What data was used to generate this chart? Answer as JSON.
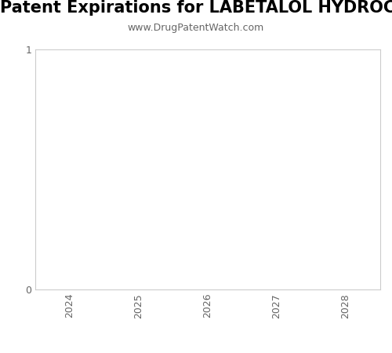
{
  "title": "Patent Expirations for LABETALOL HYDROCHLORIDE IN DEXTROS",
  "subtitle": "www.DrugPatentWatch.com",
  "xlim": [
    2023.5,
    2028.5
  ],
  "ylim": [
    0,
    1
  ],
  "xticks": [
    2024,
    2025,
    2026,
    2027,
    2028
  ],
  "yticks": [
    0,
    1
  ],
  "title_fontsize": 15,
  "subtitle_fontsize": 9,
  "tick_fontsize": 9,
  "background_color": "#ffffff",
  "plot_bg_color": "#ffffff",
  "spine_color": "#cccccc",
  "tick_color": "#666666"
}
